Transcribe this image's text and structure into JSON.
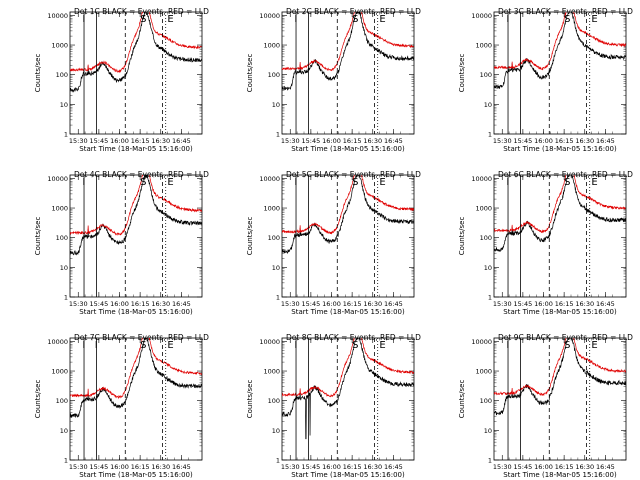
{
  "chart_data": {
    "type": "line",
    "scale": "log",
    "ylim": [
      1,
      13000
    ],
    "xlim_minutes": [
      15.4,
      17.0
    ],
    "y_tick_labels": [
      "1",
      "10",
      "100",
      "1000",
      "10000"
    ],
    "x_tick_labels": [
      "15:30",
      "15:45",
      "16:00",
      "16:15",
      "16:30",
      "16:45"
    ],
    "ylabel": "Counts/sec",
    "xlabel": "Start Time (18-Mar-05 15:16:00)",
    "series_colors": {
      "events": "#000000",
      "lld": "#e00000"
    },
    "panels": [
      {
        "title": "Det 1C BLACK = Events, RED = LLD",
        "markers": [
          "I",
          "",
          "S",
          "E"
        ]
      },
      {
        "title": "Det 2C BLACK = Events, RED = LLD",
        "markers": [
          "I",
          "",
          "S",
          "E"
        ]
      },
      {
        "title": "Det 3C BLACK = Events, RED = LLD",
        "markers": [
          "I",
          "",
          "S",
          "E"
        ]
      },
      {
        "title": "Det 4C BLACK = Events, RED = LLD",
        "markers": [
          "I",
          "",
          "S",
          "E"
        ]
      },
      {
        "title": "Det 5C BLACK = Events, RED = LLD",
        "markers": [
          "I",
          "",
          "S",
          "E"
        ]
      },
      {
        "title": "Det 6C BLACK = Events, RED = LLD",
        "markers": [
          "I",
          "",
          "S",
          "E"
        ]
      },
      {
        "title": "Det 7C BLACK = Events, RED = LLD",
        "markers": [
          "I",
          "I",
          "S",
          "E"
        ]
      },
      {
        "title": "Det 8C BLACK = Events, RED = LLD",
        "markers": [
          "I",
          "",
          "S",
          "E"
        ]
      },
      {
        "title": "Det 9C BLACK = Events, RED = LLD",
        "markers": [
          "I",
          "",
          "S",
          "E"
        ]
      }
    ]
  }
}
